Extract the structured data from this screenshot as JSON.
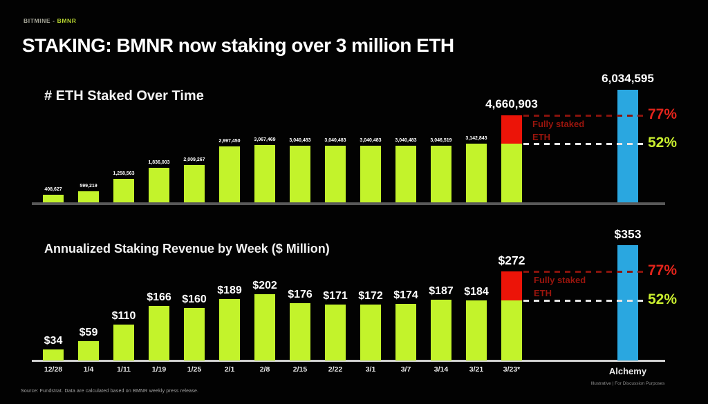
{
  "eyebrow": {
    "brand": "BITMINE",
    "separator": "-",
    "ticker": "BMNR"
  },
  "title": "STAKING: BMNR now staking over 3 million ETH",
  "footnote": "Source: Fundstrat. Data are calculated based on BMNR weekly press release.",
  "disclaimer": "Illustrative  |  For Discussion Purposes",
  "colors": {
    "background": "#020202",
    "bar_green": "#c3f32b",
    "bar_red": "#ec1408",
    "bar_blue": "#2aa7e0",
    "pct_77_text": "#e3241b",
    "pct_52_text": "#c9ee2f",
    "ref_line_red": "#8a130c",
    "ref_line_white": "#e6e6e6",
    "annotation_red": "#9b150d",
    "axis_grey": "#595959",
    "axis_white": "#cfcfcf"
  },
  "chart_data": [
    {
      "type": "bar",
      "title": "# ETH Staked Over Time",
      "categories": [
        "12/28",
        "1/4",
        "1/11",
        "1/19",
        "1/25",
        "2/1",
        "2/8",
        "2/15",
        "2/22",
        "3/1",
        "3/7",
        "3/14",
        "3/21",
        "3/23*",
        "Alchemy"
      ],
      "values": [
        408627,
        599219,
        1258563,
        1836003,
        2009267,
        2997450,
        3067469,
        3040483,
        3040483,
        3040483,
        3040483,
        3046519,
        3142843,
        4660903,
        6034595
      ],
      "bar_labels": [
        "408,627",
        "599,219",
        "1,258,563",
        "1,836,003",
        "2,009,267",
        "2,997,450",
        "3,067,469",
        "3,040,483",
        "3,040,483",
        "3,040,483",
        "3,040,483",
        "3,046,519",
        "3,142,843",
        "4,660,903",
        "6,034,595"
      ],
      "ylim": [
        0,
        6034595
      ],
      "grid": false,
      "highlight": {
        "stacked_index": 13,
        "base_value": 3142843,
        "annotation": "Fully staked ETH"
      },
      "compare_index": 14,
      "reference_lines": [
        {
          "label": "77%",
          "value": 4660903,
          "text_color": "#e3241b",
          "line_color": "#8a130c"
        },
        {
          "label": "52%",
          "value": 3142843,
          "text_color": "#c9ee2f",
          "line_color": "#e6e6e6"
        }
      ],
      "show_x_labels": false
    },
    {
      "type": "bar",
      "title": "Annualized Staking Revenue by Week ($ Million)",
      "categories": [
        "12/28",
        "1/4",
        "1/11",
        "1/19",
        "1/25",
        "2/1",
        "2/8",
        "2/15",
        "2/22",
        "3/1",
        "3/7",
        "3/14",
        "3/21",
        "3/23*",
        "Alchemy"
      ],
      "values": [
        34,
        59,
        110,
        166,
        160,
        189,
        202,
        176,
        171,
        172,
        174,
        187,
        184,
        272,
        353
      ],
      "bar_labels": [
        "$34",
        "$59",
        "$110",
        "$166",
        "$160",
        "$189",
        "$202",
        "$176",
        "$171",
        "$172",
        "$174",
        "$187",
        "$184",
        "$272",
        "$353"
      ],
      "ylim": [
        0,
        353
      ],
      "grid": false,
      "highlight": {
        "stacked_index": 13,
        "base_value": 184,
        "annotation": "Fully staked ETH"
      },
      "compare_index": 14,
      "reference_lines": [
        {
          "label": "77%",
          "value": 272,
          "text_color": "#e3241b",
          "line_color": "#8a130c"
        },
        {
          "label": "52%",
          "value": 184,
          "text_color": "#c9ee2f",
          "line_color": "#e6e6e6"
        }
      ],
      "show_x_labels": true
    }
  ]
}
